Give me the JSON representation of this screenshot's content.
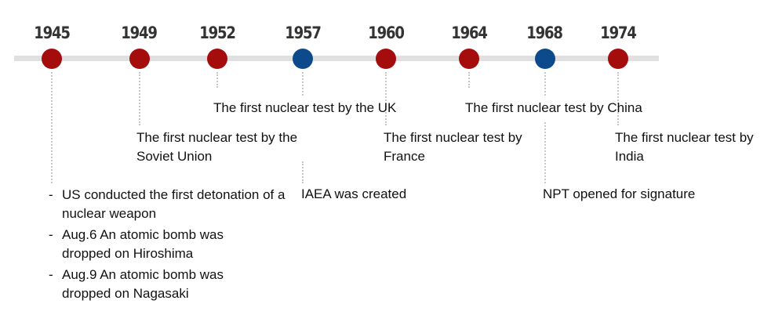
{
  "colors": {
    "nuclear_test": "#a50c0c",
    "treaty_agency": "#0c4a8c",
    "timeline_bar": "#e0e0e0"
  },
  "events": [
    {
      "year": "1945",
      "color": "red",
      "text": "",
      "bullets": [
        "US conducted the first detonation of a nuclear weapon",
        "Aug.6 An atomic bomb was dropped on Hiroshima",
        "Aug.9 An atomic bomb was dropped on Nagasaki"
      ]
    },
    {
      "year": "1949",
      "color": "red",
      "text": "The first nuclear test by the Soviet Union"
    },
    {
      "year": "1952",
      "color": "red",
      "text": "The first nuclear test by the UK"
    },
    {
      "year": "1957",
      "color": "blue",
      "text": "IAEA was created"
    },
    {
      "year": "1960",
      "color": "red",
      "text": "The first nuclear test by France"
    },
    {
      "year": "1964",
      "color": "red",
      "text": "The first nuclear test by China"
    },
    {
      "year": "1968",
      "color": "blue",
      "text": "NPT opened for signature"
    },
    {
      "year": "1974",
      "color": "red",
      "text": "The first nuclear test by India"
    }
  ]
}
